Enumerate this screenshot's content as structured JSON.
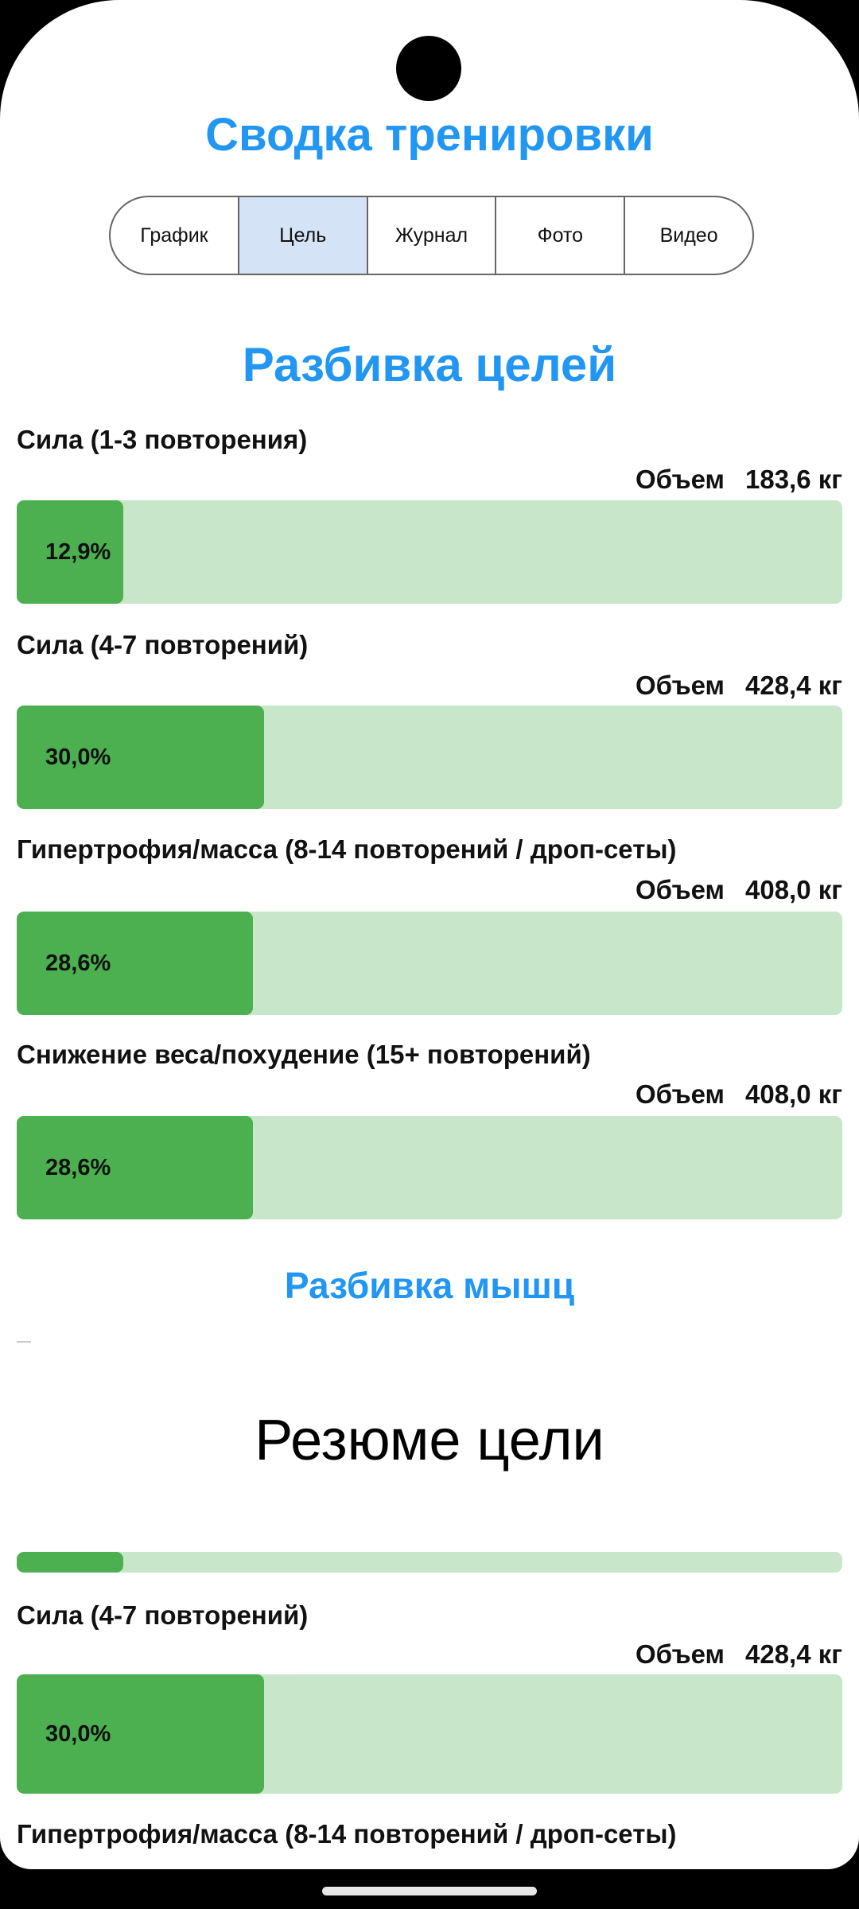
{
  "header": {
    "title": "Сводка тренировки"
  },
  "tabs": [
    {
      "label": "График"
    },
    {
      "label": "Цель",
      "active": true
    },
    {
      "label": "Журнал"
    },
    {
      "label": "Фото"
    },
    {
      "label": "Видео"
    }
  ],
  "goals_section": {
    "title": "Разбивка целей",
    "items": [
      {
        "label": "Сила (1-3 повторения)",
        "volume_label": "Объем",
        "volume": "183,6 кг",
        "percent_text": "12,9%",
        "percent": 12.9
      },
      {
        "label": "Сила (4-7 повторений)",
        "volume_label": "Объем",
        "volume": "428,4 кг",
        "percent_text": "30,0%",
        "percent": 30.0
      },
      {
        "label": "Гипертрофия/масса (8-14 повторений / дроп-сеты)",
        "volume_label": "Объем",
        "volume": "408,0 кг",
        "percent_text": "28,6%",
        "percent": 28.6
      },
      {
        "label": "Снижение веса/похудение (15+ повторений)",
        "volume_label": "Объем",
        "volume": "408,0 кг",
        "percent_text": "28,6%",
        "percent": 28.6
      }
    ]
  },
  "muscles_section": {
    "title": "Разбивка мышц"
  },
  "summary_section": {
    "title": "Резюме цели",
    "items": [
      {
        "percent": 12.9
      },
      {
        "label": "Сила (4-7 повторений)",
        "volume_label": "Объем",
        "volume": "428,4 кг",
        "percent_text": "30,0%",
        "percent": 30.0
      },
      {
        "label": "Гипертрофия/масса (8-14 повторений / дроп-сеты)"
      }
    ]
  },
  "colors": {
    "accent": "#2196f3",
    "bar_fill": "#4caf50",
    "bar_track": "#c8e6c9",
    "active_tab": "#d4e3f5"
  }
}
